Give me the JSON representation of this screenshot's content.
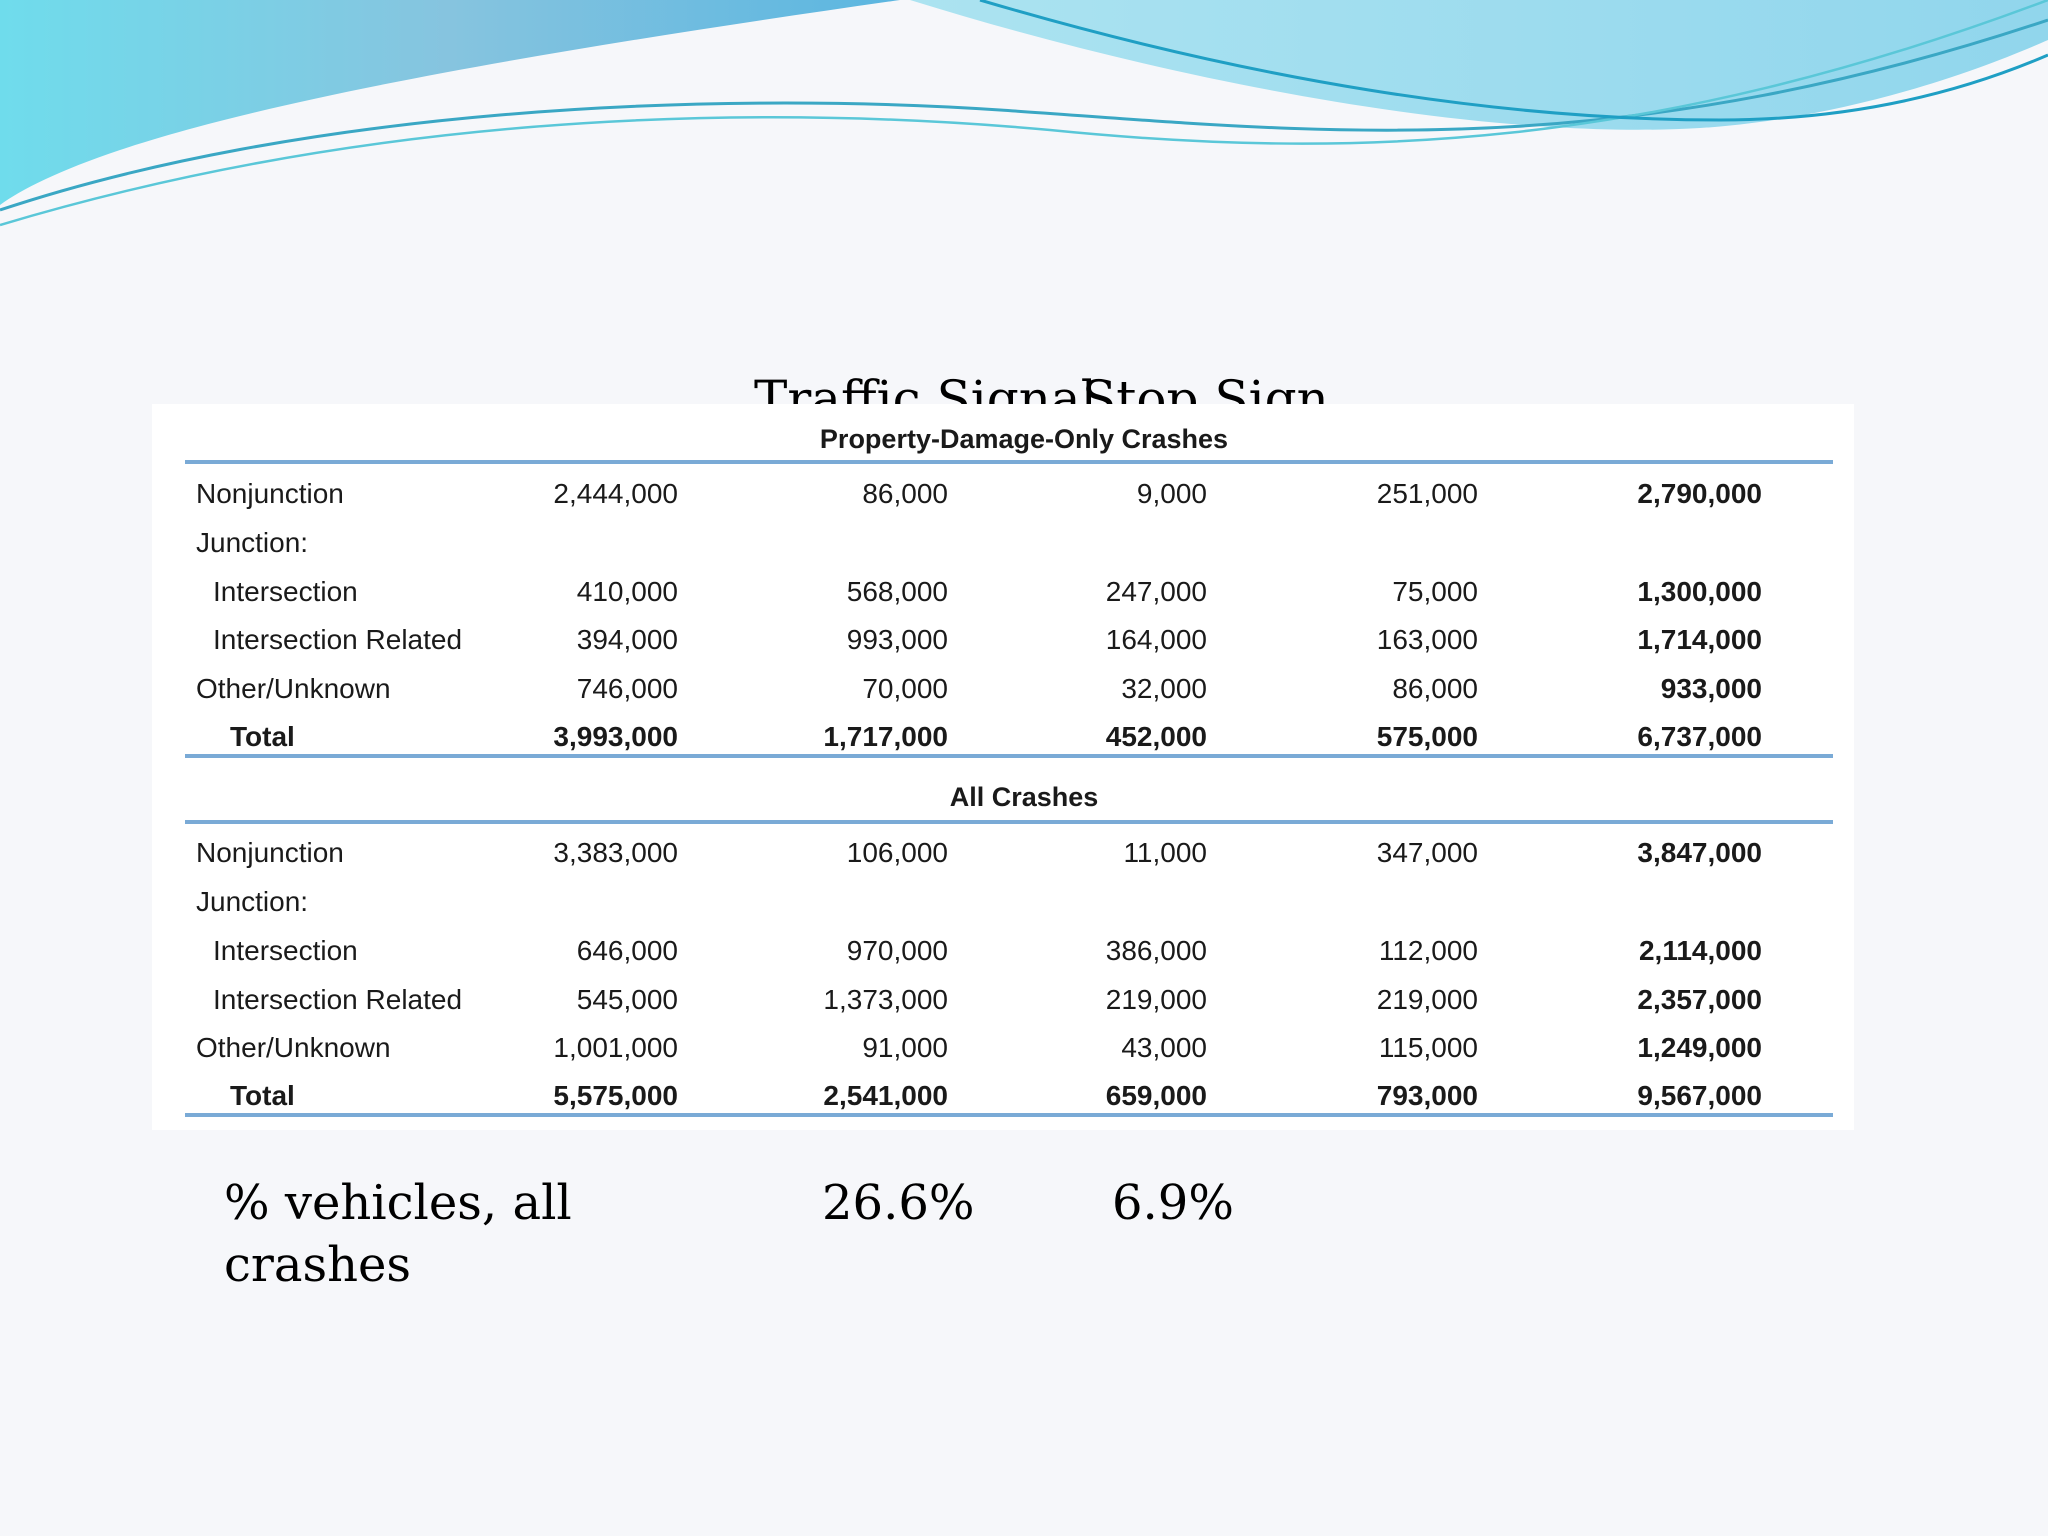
{
  "column_headers": [
    "Traffic Signal",
    "Stop Sign"
  ],
  "sections": [
    {
      "title": "Property-Damage-Only Crashes",
      "rows": [
        {
          "label": "Nonjunction",
          "values": [
            "2,444,000",
            "86,000",
            "9,000",
            "251,000",
            "2,790,000"
          ]
        },
        {
          "label": "Junction:",
          "values": [
            "",
            "",
            "",
            "",
            ""
          ]
        },
        {
          "label": "Intersection",
          "values": [
            "410,000",
            "568,000",
            "247,000",
            "75,000",
            "1,300,000"
          ]
        },
        {
          "label": "Intersection Related",
          "values": [
            "394,000",
            "993,000",
            "164,000",
            "163,000",
            "1,714,000"
          ]
        },
        {
          "label": "Other/Unknown",
          "values": [
            "746,000",
            "70,000",
            "32,000",
            "86,000",
            "933,000"
          ]
        },
        {
          "label": "Total",
          "values": [
            "3,993,000",
            "1,717,000",
            "452,000",
            "575,000",
            "6,737,000"
          ]
        }
      ]
    },
    {
      "title": "All Crashes",
      "rows": [
        {
          "label": "Nonjunction",
          "values": [
            "3,383,000",
            "106,000",
            "11,000",
            "347,000",
            "3,847,000"
          ]
        },
        {
          "label": "Junction:",
          "values": [
            "",
            "",
            "",
            "",
            ""
          ]
        },
        {
          "label": "Intersection",
          "values": [
            "646,000",
            "970,000",
            "386,000",
            "112,000",
            "2,114,000"
          ]
        },
        {
          "label": "Intersection Related",
          "values": [
            "545,000",
            "1,373,000",
            "219,000",
            "219,000",
            "2,357,000"
          ]
        },
        {
          "label": "Other/Unknown",
          "values": [
            "1,001,000",
            "91,000",
            "43,000",
            "115,000",
            "1,249,000"
          ]
        },
        {
          "label": "Total",
          "values": [
            "5,575,000",
            "2,541,000",
            "659,000",
            "793,000",
            "9,567,000"
          ]
        }
      ]
    }
  ],
  "footer": {
    "label": "% vehicles, all crashes",
    "values": [
      "26.6%",
      "6.9%"
    ]
  },
  "colors": {
    "rule": "#7aaad6",
    "wave_dark": "#4fb8d8",
    "wave_light": "#8fd8e8"
  }
}
